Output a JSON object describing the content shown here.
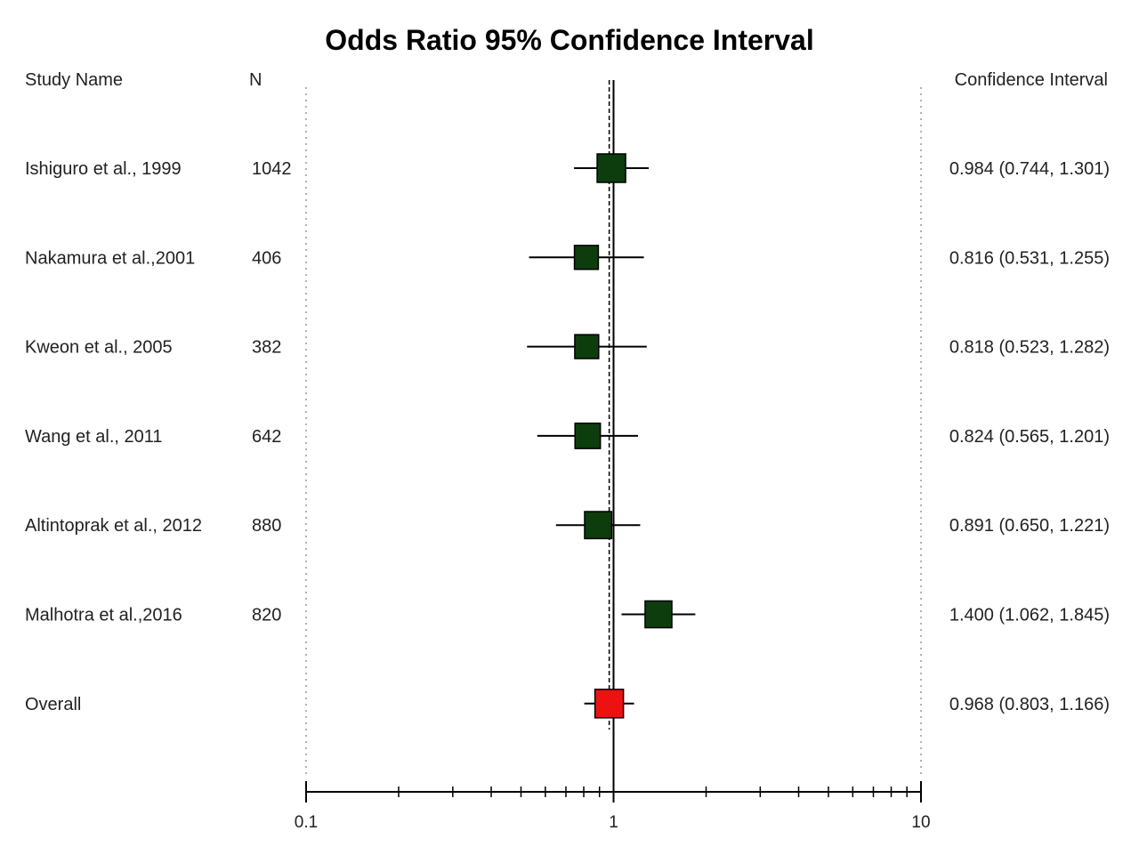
{
  "chart_data": {
    "type": "forest",
    "title": "Odds Ratio 95% Confidence Interval",
    "column_headers": {
      "study": "Study Name",
      "n": "N",
      "ci": "Confidence Interval"
    },
    "x_scale": "log",
    "xlim": [
      0.1,
      10
    ],
    "x_ticks": [
      0.1,
      1,
      10
    ],
    "x_tick_labels": [
      "0.1",
      "1",
      "10"
    ],
    "reference_line": 1,
    "overall_line": 0.968,
    "studies": [
      {
        "name": "Ishiguro et al., 1999",
        "n": "1042",
        "or": 0.984,
        "lower": 0.744,
        "upper": 1.301,
        "ci_text": "0.984 (0.744, 1.301)",
        "weight": 1.0
      },
      {
        "name": "Nakamura et al.,2001",
        "n": "406",
        "or": 0.816,
        "lower": 0.531,
        "upper": 1.255,
        "ci_text": "0.816 (0.531, 1.255)",
        "weight": 0.68
      },
      {
        "name": "Kweon et al., 2005",
        "n": "382",
        "or": 0.818,
        "lower": 0.523,
        "upper": 1.282,
        "ci_text": "0.818 (0.523, 1.282)",
        "weight": 0.68
      },
      {
        "name": "Wang et al., 2011",
        "n": "642",
        "or": 0.824,
        "lower": 0.565,
        "upper": 1.201,
        "ci_text": "0.824 (0.565, 1.201)",
        "weight": 0.78
      },
      {
        "name": "Altintoprak et al., 2012",
        "n": "880",
        "or": 0.891,
        "lower": 0.65,
        "upper": 1.221,
        "ci_text": "0.891 (0.650, 1.221)",
        "weight": 0.9
      },
      {
        "name": "Malhotra et al.,2016",
        "n": "820",
        "or": 1.4,
        "lower": 1.062,
        "upper": 1.845,
        "ci_text": "1.400 (1.062, 1.845)",
        "weight": 0.88
      }
    ],
    "overall": {
      "name": "Overall",
      "or": 0.968,
      "lower": 0.803,
      "upper": 1.166,
      "ci_text": "0.968 (0.803, 1.166)"
    },
    "colors": {
      "study_marker": "#0d3d0d",
      "overall_marker": "#ee1111",
      "line": "#000000",
      "dotted": "#999999"
    }
  }
}
